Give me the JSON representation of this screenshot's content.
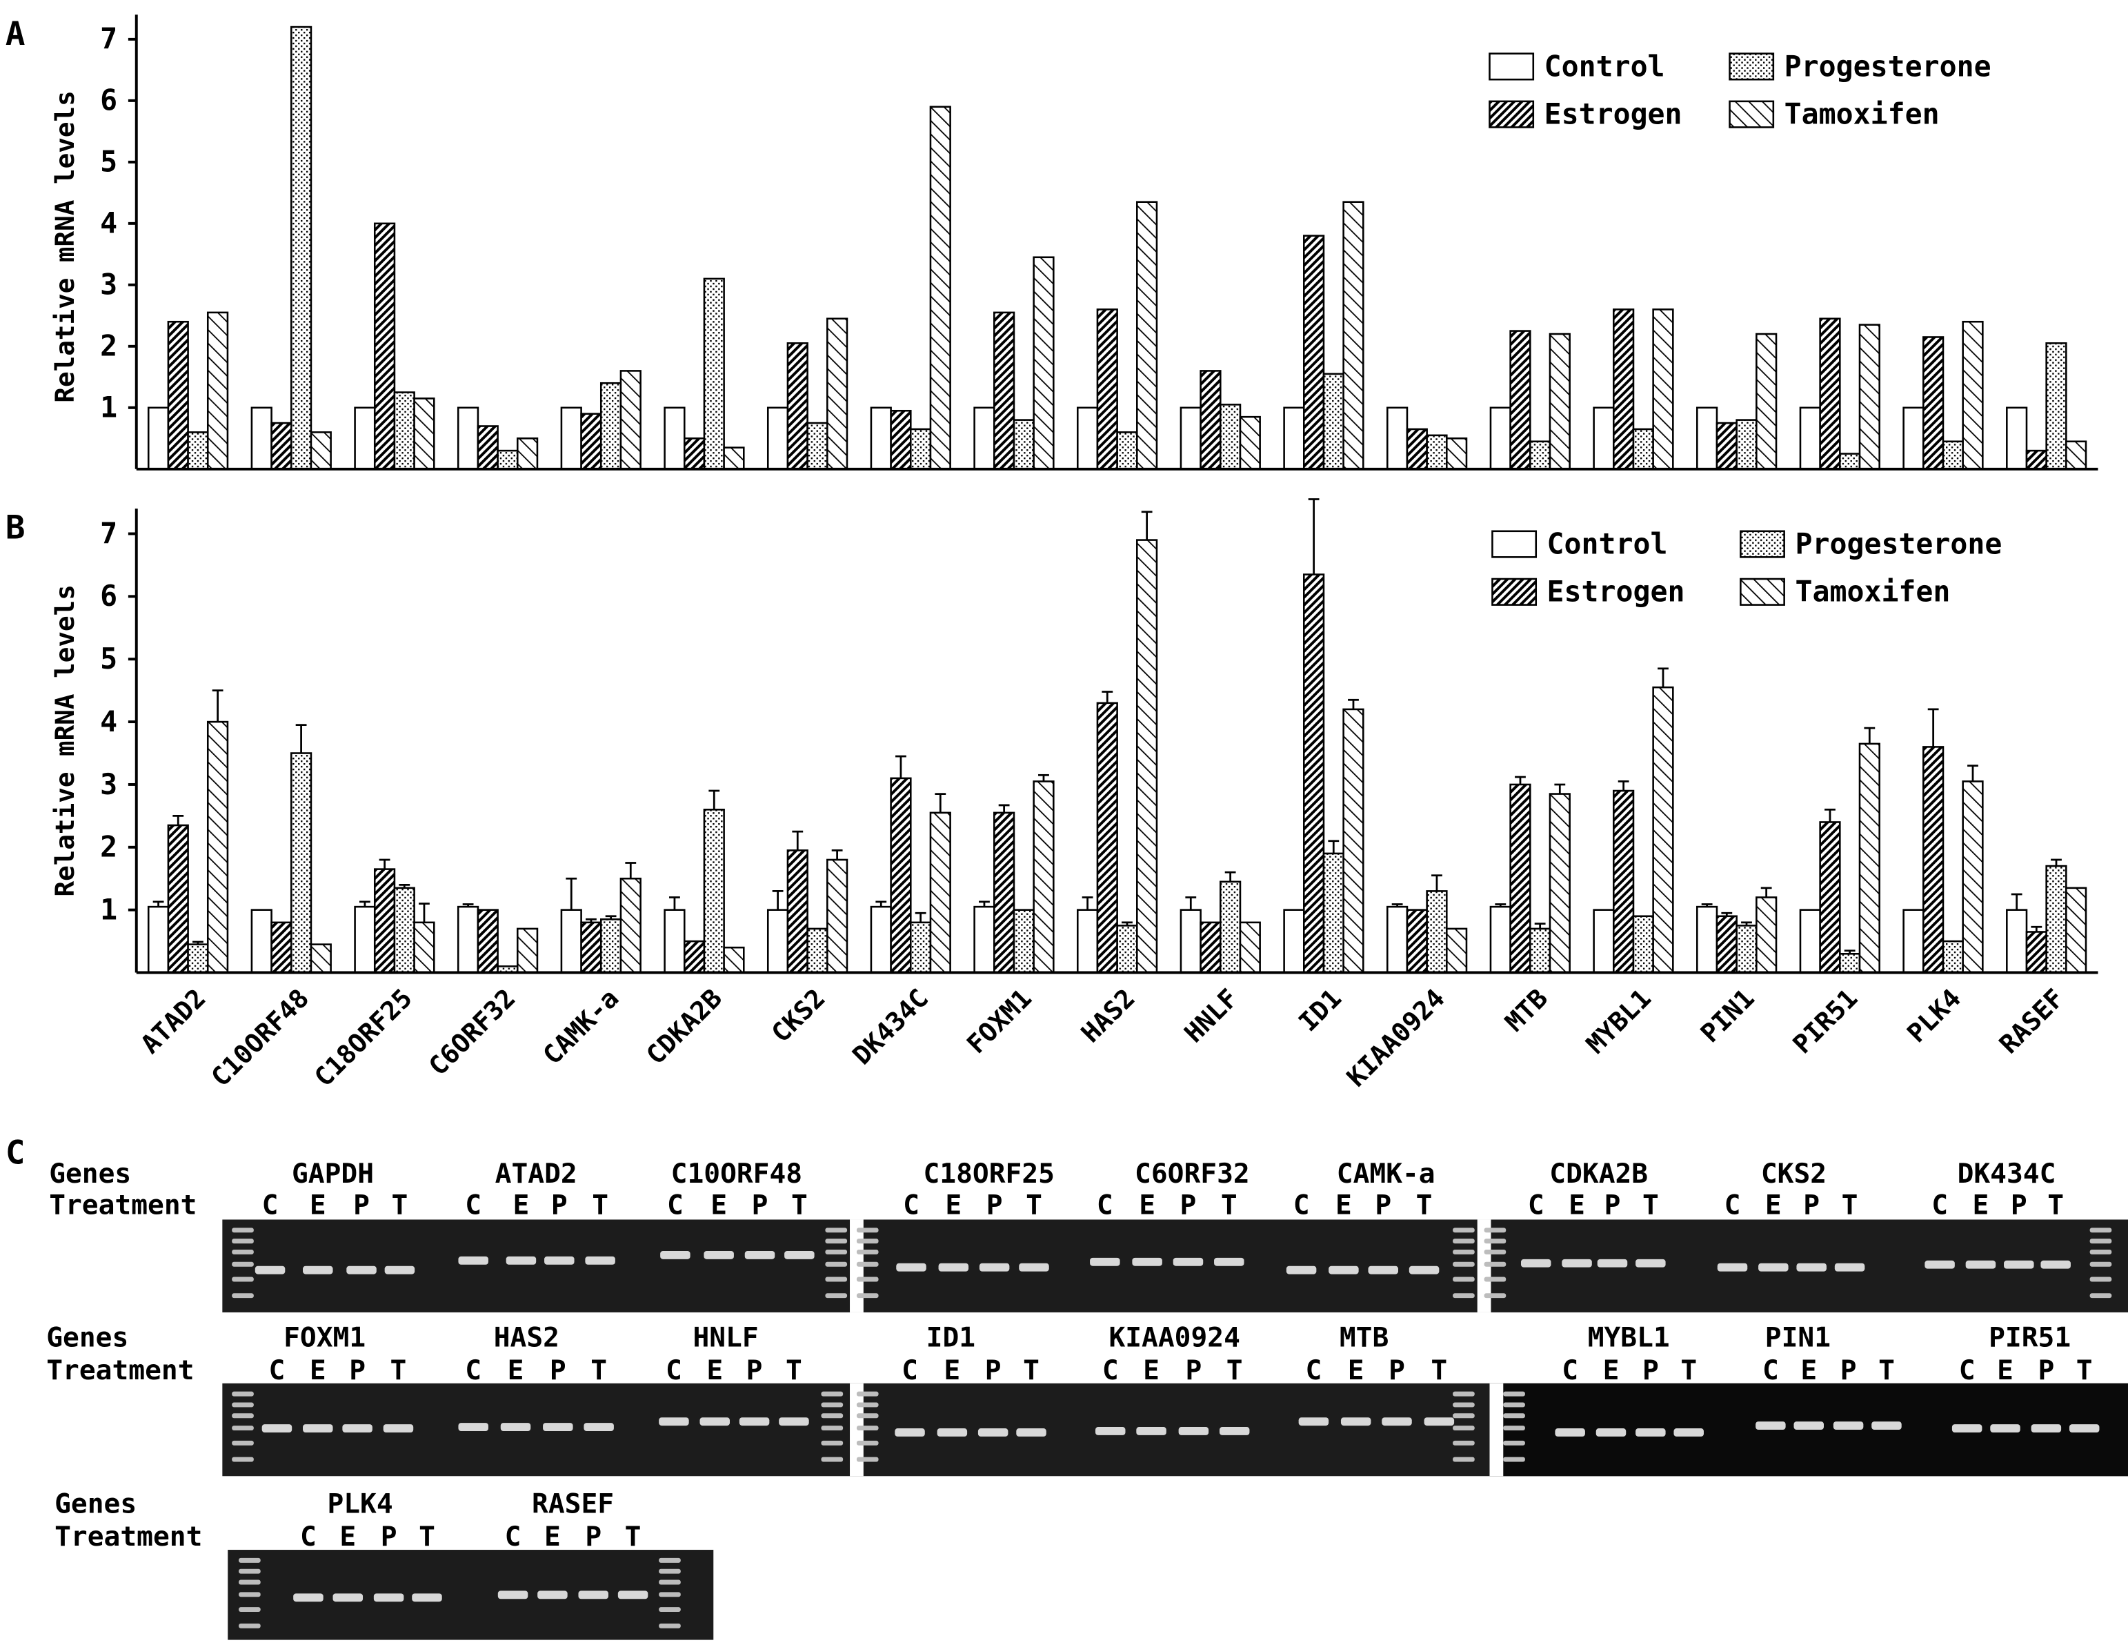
{
  "panels": {
    "a": "A",
    "b": "B",
    "c": "C"
  },
  "treatments_short": [
    "C",
    "E",
    "P",
    "T"
  ],
  "gel": {
    "genes_label": "Genes",
    "treatment_label": "Treatment",
    "rows": [
      [
        "GAPDH",
        "ATAD2",
        "C10ORF48",
        "C18ORF25",
        "C6ORF32",
        "CAMK-a",
        "CDKA2B",
        "CKS2",
        "DK434C"
      ],
      [
        "FOXM1",
        "HAS2",
        "HNLF",
        "ID1",
        "KIAA0924",
        "MTB",
        "MYBL1",
        "PIN1",
        "PIR51"
      ],
      [
        "PLK4",
        "RASEF"
      ]
    ]
  },
  "chart_data": [
    {
      "type": "bar",
      "panel": "A",
      "ylabel": "Relative mRNA levels",
      "ylim": [
        0,
        7.4
      ],
      "yticks": [
        1,
        2,
        3,
        4,
        5,
        6,
        7
      ],
      "categories": [
        "ATAD2",
        "C10ORF48",
        "C18ORF25",
        "C6ORF32",
        "CAMK-a",
        "CDKA2B",
        "CKS2",
        "DK434C",
        "FOXM1",
        "HAS2",
        "HNLF",
        "ID1",
        "KIAA0924",
        "MTB",
        "MYBL1",
        "PIN1",
        "PIR51",
        "PLK4",
        "RASEF"
      ],
      "legend": [
        "Control",
        "Estrogen",
        "Progesterone",
        "Tamoxifen"
      ],
      "series": [
        {
          "name": "Control",
          "values": [
            1,
            1,
            1,
            1,
            1,
            1,
            1,
            1,
            1,
            1,
            1,
            1,
            1,
            1,
            1,
            1,
            1,
            1,
            1
          ]
        },
        {
          "name": "Estrogen",
          "values": [
            2.4,
            0.75,
            4.0,
            0.7,
            0.9,
            0.5,
            2.05,
            0.95,
            2.55,
            2.6,
            1.6,
            3.8,
            0.65,
            2.25,
            2.6,
            0.75,
            2.45,
            2.15,
            0.3
          ]
        },
        {
          "name": "Progesterone",
          "values": [
            0.6,
            7.2,
            1.25,
            0.3,
            1.4,
            3.1,
            0.75,
            0.65,
            0.8,
            0.6,
            1.05,
            1.55,
            0.55,
            0.45,
            0.65,
            0.8,
            0.25,
            0.45,
            2.05
          ]
        },
        {
          "name": "Tamoxifen",
          "values": [
            2.55,
            0.6,
            1.15,
            0.5,
            1.6,
            0.35,
            2.45,
            5.9,
            3.45,
            4.35,
            0.85,
            4.35,
            0.5,
            2.2,
            2.6,
            2.2,
            2.35,
            2.4,
            0.45
          ]
        }
      ]
    },
    {
      "type": "bar",
      "panel": "B",
      "ylabel": "Relative mRNA levels",
      "ylim": [
        0,
        7.4
      ],
      "yticks": [
        1,
        2,
        3,
        4,
        5,
        6,
        7
      ],
      "categories": [
        "ATAD2",
        "C10ORF48",
        "C18ORF25",
        "C6ORF32",
        "CAMK-a",
        "CDKA2B",
        "CKS2",
        "DK434C",
        "FOXM1",
        "HAS2",
        "HNLF",
        "ID1",
        "KIAA0924",
        "MTB",
        "MYBL1",
        "PIN1",
        "PIR51",
        "PLK4",
        "RASEF"
      ],
      "legend": [
        "Control",
        "Estrogen",
        "Progesterone",
        "Tamoxifen"
      ],
      "series": [
        {
          "name": "Control",
          "values": [
            1.05,
            1.0,
            1.05,
            1.05,
            1.0,
            1.0,
            1.0,
            1.05,
            1.05,
            1.0,
            1.0,
            1.0,
            1.05,
            1.05,
            1.0,
            1.05,
            1.0,
            1.0,
            1.0
          ],
          "errors": [
            0.08,
            0,
            0.08,
            0.04,
            0.5,
            0.2,
            0.3,
            0.08,
            0.08,
            0.2,
            0.2,
            0,
            0.04,
            0.04,
            0,
            0.04,
            0,
            0,
            0.25
          ]
        },
        {
          "name": "Estrogen",
          "values": [
            2.35,
            0.8,
            1.65,
            1.0,
            0.8,
            0.5,
            1.95,
            3.1,
            2.55,
            4.3,
            0.8,
            6.35,
            1.0,
            3.0,
            2.9,
            0.9,
            2.4,
            3.6,
            0.65
          ],
          "errors": [
            0.15,
            0,
            0.15,
            0,
            0.05,
            0,
            0.3,
            0.35,
            0.12,
            0.18,
            0,
            1.2,
            0,
            0.12,
            0.15,
            0.05,
            0.2,
            0.6,
            0.08
          ]
        },
        {
          "name": "Progesterone",
          "values": [
            0.45,
            3.5,
            1.35,
            0.1,
            0.85,
            2.6,
            0.7,
            0.8,
            1.0,
            0.75,
            1.45,
            1.9,
            1.3,
            0.7,
            0.9,
            0.75,
            0.3,
            0.5,
            1.7
          ],
          "errors": [
            0.04,
            0.45,
            0.05,
            0,
            0.05,
            0.3,
            0,
            0.15,
            0,
            0.05,
            0.15,
            0.2,
            0.25,
            0.08,
            0,
            0.05,
            0.05,
            0,
            0.1
          ]
        },
        {
          "name": "Tamoxifen",
          "values": [
            4.0,
            0.45,
            0.8,
            0.7,
            1.5,
            0.4,
            1.8,
            2.55,
            3.05,
            6.9,
            0.8,
            4.2,
            0.7,
            2.85,
            4.55,
            1.2,
            3.65,
            3.05,
            1.35
          ],
          "errors": [
            0.5,
            0,
            0.3,
            0,
            0.25,
            0,
            0.15,
            0.3,
            0.1,
            0.45,
            0,
            0.15,
            0,
            0.15,
            0.3,
            0.15,
            0.25,
            0.25,
            0
          ]
        }
      ]
    }
  ]
}
